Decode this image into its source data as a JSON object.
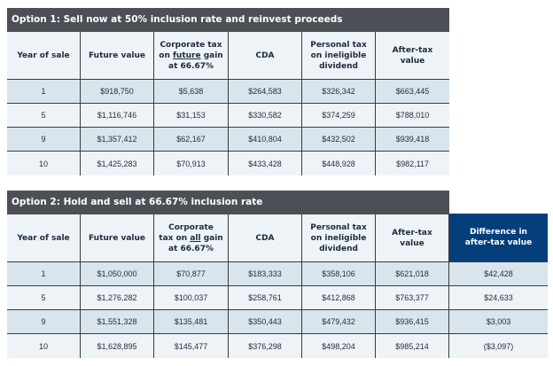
{
  "option1": {
    "title": "Option 1: Sell now at 50% inclusion rate and reinvest proceeds",
    "headers": [
      [
        "Year of sale"
      ],
      [
        "Future value"
      ],
      [
        "Corporate tax",
        "on ",
        "future",
        " gain",
        "at 66.67%"
      ],
      [
        "CDA"
      ],
      [
        "Personal tax",
        "on ineligible",
        "dividend"
      ],
      [
        "After-tax",
        "value"
      ]
    ],
    "rows": [
      [
        "1",
        "$918,750",
        "$5,638",
        "$264,583",
        "$326,342",
        "$663,445"
      ],
      [
        "5",
        "$1,116,746",
        "$31,153",
        "$330,582",
        "$374,259",
        "$788,010"
      ],
      [
        "9",
        "$1,357,412",
        "$62,167",
        "$410,804",
        "$432,502",
        "$939,418"
      ],
      [
        "10",
        "$1,425,283",
        "$70,913",
        "$433,428",
        "$448,928",
        "$982,117"
      ]
    ]
  },
  "option2": {
    "title": "Option 2: Hold and sell at 66.67% inclusion rate",
    "headers": [
      [
        "Year of sale"
      ],
      [
        "Future value"
      ],
      [
        "Corporate",
        "tax on ",
        "all",
        " gain",
        "at 66.67%"
      ],
      [
        "CDA"
      ],
      [
        "Personal tax",
        "on ineligible",
        "dividend"
      ],
      [
        "After-tax",
        "value"
      ],
      [
        "Difference in",
        "after-tax value"
      ]
    ],
    "rows": [
      [
        "1",
        "$1,050,000",
        "$70,877",
        "$183,333",
        "$358,106",
        "$621,018",
        "$42,428"
      ],
      [
        "5",
        "$1,276,282",
        "$100,037",
        "$258,761",
        "$412,868",
        "$763,377",
        "$24,633"
      ],
      [
        "9",
        "$1,551,328",
        "$135,481",
        "$350,443",
        "$479,432",
        "$936,415",
        "$3,003"
      ],
      [
        "10",
        "$1,628,895",
        "$145,477",
        "$376,298",
        "$498,204",
        "$985,214",
        "($3,097)"
      ]
    ]
  },
  "colors": {
    "title_bar": "#4d4f57",
    "header_bg": "#eef3f8",
    "row_odd": "#d9e5ed",
    "row_even": "#eef3f8",
    "accent": "#043f7c"
  }
}
